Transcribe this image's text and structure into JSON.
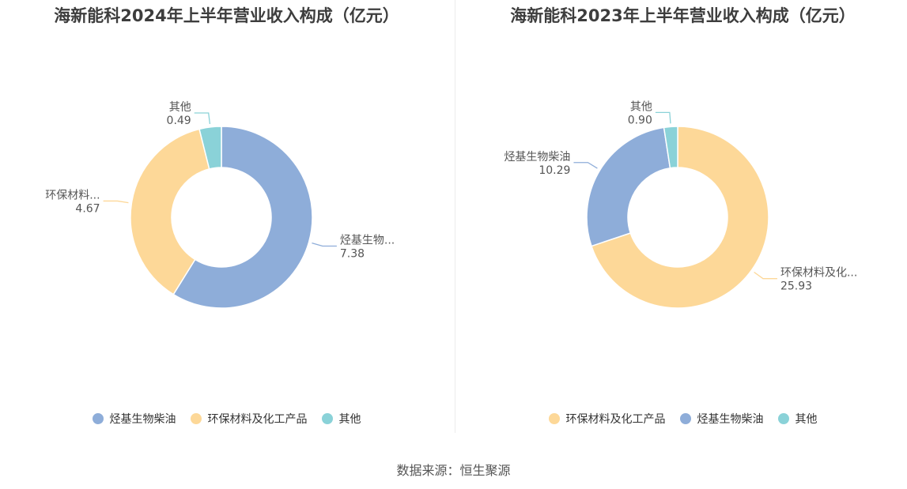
{
  "chart_data": [
    {
      "type": "pie",
      "variant": "donut",
      "title": "海新能科2024年上半年营业收入构成（亿元）",
      "categories": [
        "烃基生物柴油",
        "环保材料及化工产品",
        "其他"
      ],
      "values": [
        7.38,
        4.67,
        0.49
      ],
      "value_labels": [
        "7.38",
        "4.67",
        "0.49"
      ],
      "slice_labels": [
        "烃基生物...",
        "环保材料...",
        "其他"
      ],
      "colors": [
        "#8eadd9",
        "#fdd898",
        "#8ad2d8"
      ],
      "legend": {
        "position": "bottom",
        "items": [
          {
            "name": "烃基生物柴油",
            "color": "#8eadd9"
          },
          {
            "name": "环保材料及化工产品",
            "color": "#fdd898"
          },
          {
            "name": "其他",
            "color": "#8ad2d8"
          }
        ]
      }
    },
    {
      "type": "pie",
      "variant": "donut",
      "title": "海新能科2023年上半年营业收入构成（亿元）",
      "categories": [
        "环保材料及化工产品",
        "烃基生物柴油",
        "其他"
      ],
      "values": [
        25.93,
        10.29,
        0.9
      ],
      "value_labels": [
        "25.93",
        "10.29",
        "0.90"
      ],
      "slice_labels": [
        "环保材料及化...",
        "烃基生物柴油",
        "其他"
      ],
      "colors": [
        "#fdd898",
        "#8eadd9",
        "#8ad2d8"
      ],
      "legend": {
        "position": "bottom",
        "items": [
          {
            "name": "环保材料及化工产品",
            "color": "#fdd898"
          },
          {
            "name": "烃基生物柴油",
            "color": "#8eadd9"
          },
          {
            "name": "其他",
            "color": "#8ad2d8"
          }
        ]
      }
    }
  ],
  "footer": {
    "source": "数据来源：恒生聚源"
  }
}
